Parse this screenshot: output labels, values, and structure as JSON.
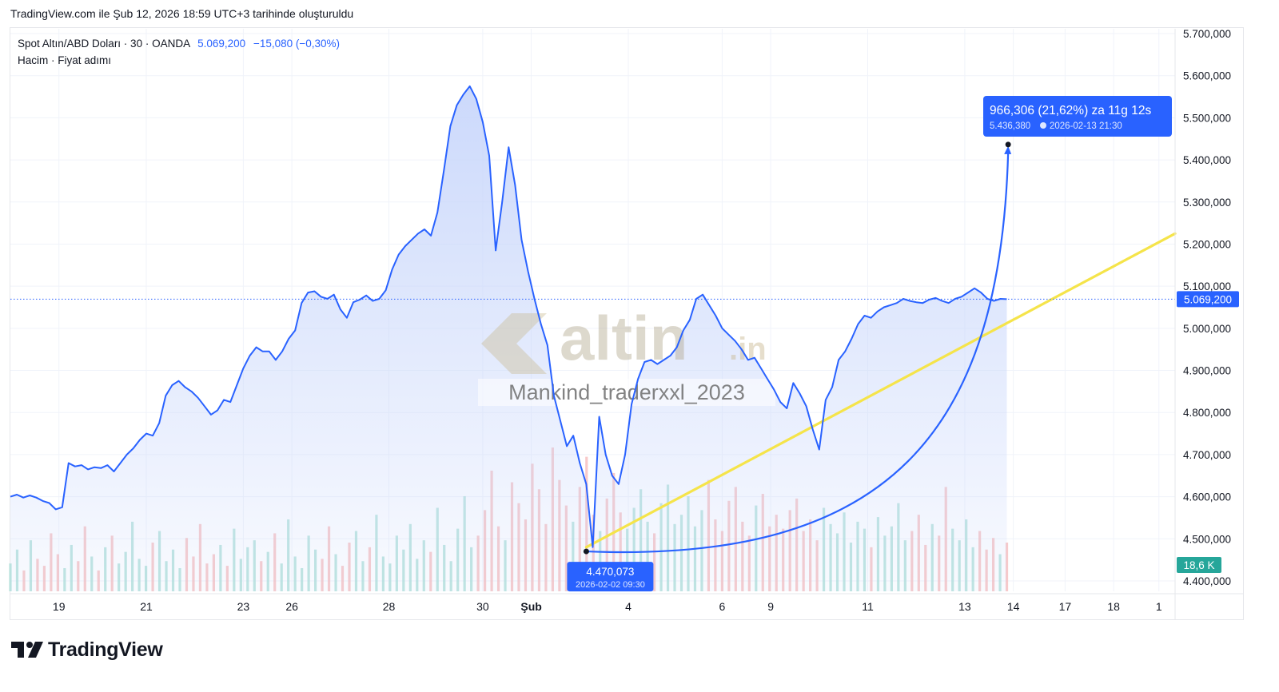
{
  "header": {
    "created_text": "TradingView.com ile Şub 12, 2026 18:59 UTC+3 tarihinde oluşturuldu"
  },
  "legend": {
    "symbol": "Spot Altın/ABD Doları · 30 · OANDA",
    "last_value": "5.069,200",
    "change": "−15,080 (−0,30%)",
    "indicators": "Hacim · Fiyat adımı"
  },
  "watermark": {
    "logo_text": "altin",
    "logo_suffix": ".in",
    "user_text": "Mankind_traderxxl_2023"
  },
  "footer": {
    "brand": "TradingView"
  },
  "colors": {
    "price_line": "#2962ff",
    "area_fill": "#c9d7fb",
    "trend_line": "#f5e44a",
    "volume_up": "#a6dcd3",
    "volume_down": "#f5b7b7",
    "price_tag": "#2962ff",
    "volume_tag": "#26a69a"
  },
  "chart_data": {
    "type": "line",
    "title": "Spot Altın/ABD Doları · 30 · OANDA",
    "ylim": [
      4400000,
      5700000
    ],
    "y_ticks": [
      "4.400,000",
      "4.500,000",
      "4.600,000",
      "4.700,000",
      "4.800,000",
      "4.900,000",
      "5.000,000",
      "5.100,000",
      "5.200,000",
      "5.300,000",
      "5.400,000",
      "5.500,000",
      "5.600,000",
      "5.700,000"
    ],
    "y_tick_values": [
      4400000,
      4500000,
      4600000,
      4700000,
      4800000,
      4900000,
      5000000,
      5100000,
      5200000,
      5300000,
      5400000,
      5500000,
      5600000,
      5700000
    ],
    "x_ticks": [
      {
        "label": "19",
        "index": 7.5
      },
      {
        "label": "21",
        "index": 21
      },
      {
        "label": "23",
        "index": 36
      },
      {
        "label": "26",
        "index": 43.5
      },
      {
        "label": "28",
        "index": 58.5
      },
      {
        "label": "30",
        "index": 73
      },
      {
        "label": "Şub",
        "index": 80.5
      },
      {
        "label": "4",
        "index": 95.5
      },
      {
        "label": "6",
        "index": 110
      },
      {
        "label": "9",
        "index": 117.5
      },
      {
        "label": "11",
        "index": 132.5
      },
      {
        "label": "13",
        "index": 147.5
      },
      {
        "label": "14",
        "index": 155
      },
      {
        "label": "17",
        "index": 163
      },
      {
        "label": "18",
        "index": 170.5
      },
      {
        "label": "1",
        "index": 177.5
      }
    ],
    "x_index_max": 180,
    "series": [
      {
        "name": "Spot Altın/ABD Doları",
        "values": [
          4600000,
          4605000,
          4598000,
          4603000,
          4598000,
          4590000,
          4585000,
          4570000,
          4575000,
          4680000,
          4672000,
          4675000,
          4665000,
          4670000,
          4668000,
          4675000,
          4660000,
          4680000,
          4700000,
          4715000,
          4735000,
          4750000,
          4745000,
          4775000,
          4840000,
          4865000,
          4875000,
          4860000,
          4850000,
          4835000,
          4815000,
          4795000,
          4805000,
          4830000,
          4825000,
          4865000,
          4905000,
          4935000,
          4955000,
          4945000,
          4945000,
          4925000,
          4945000,
          4975000,
          4995000,
          5060000,
          5085000,
          5088000,
          5075000,
          5070000,
          5080000,
          5045000,
          5025000,
          5062000,
          5068000,
          5078000,
          5065000,
          5070000,
          5090000,
          5140000,
          5175000,
          5195000,
          5210000,
          5225000,
          5235000,
          5220000,
          5275000,
          5375000,
          5480000,
          5530000,
          5555000,
          5575000,
          5545000,
          5490000,
          5410000,
          5185000,
          5300000,
          5430000,
          5340000,
          5210000,
          5135000,
          5070000,
          5010000,
          4960000,
          4840000,
          4780000,
          4720000,
          4745000,
          4680000,
          4630000,
          4480000,
          4790000,
          4700000,
          4650000,
          4630000,
          4700000,
          4820000,
          4880000,
          4920000,
          4925000,
          4915000,
          4925000,
          4935000,
          4955000,
          4995000,
          5020000,
          5070000,
          5080000,
          5055000,
          5030000,
          5000000,
          4985000,
          4970000,
          4950000,
          4925000,
          4930000,
          4905000,
          4880000,
          4855000,
          4825000,
          4810000,
          4870000,
          4845000,
          4815000,
          4760000,
          4712000,
          4830000,
          4860000,
          4925000,
          4945000,
          4975000,
          5010000,
          5030000,
          5025000,
          5040000,
          5050000,
          5055000,
          5060000,
          5070000,
          5065000,
          5062000,
          5060000,
          5068000,
          5072000,
          5065000,
          5060000,
          5070000,
          5075000,
          5085000,
          5095000,
          5085000,
          5070000,
          5065000,
          5070000,
          5069200
        ]
      }
    ],
    "volume_scale_label": "18,6 K",
    "volume_bars": [
      12,
      18,
      9,
      22,
      14,
      11,
      25,
      16,
      10,
      20,
      13,
      28,
      15,
      9,
      19,
      24,
      12,
      17,
      30,
      14,
      11,
      21,
      26,
      13,
      18,
      10,
      23,
      15,
      29,
      12,
      16,
      20,
      11,
      27,
      14,
      19,
      22,
      13,
      17,
      25,
      12,
      31,
      15,
      10,
      24,
      18,
      14,
      28,
      16,
      11,
      21,
      26,
      13,
      19,
      33,
      15,
      12,
      24,
      18,
      29,
      14,
      22,
      17,
      36,
      20,
      13,
      27,
      41,
      19,
      24,
      35,
      52,
      28,
      22,
      47,
      38,
      31,
      55,
      44,
      29,
      62,
      48,
      37,
      30,
      45,
      58,
      33,
      26,
      40,
      51,
      34,
      27,
      36,
      44,
      30,
      25,
      38,
      46,
      29,
      33,
      41,
      28,
      35,
      48,
      31,
      26,
      39,
      45,
      30,
      24,
      37,
      42,
      28,
      33,
      27,
      35,
      40,
      26,
      31,
      22,
      36,
      29,
      25,
      34,
      21,
      30,
      27,
      19,
      32,
      24,
      28,
      38,
      22,
      26,
      33,
      20,
      29,
      24,
      45,
      27,
      22,
      31,
      19,
      26,
      18,
      23,
      16,
      21
    ],
    "last_price_label": "5.069,200",
    "last_price": 5069200,
    "low_label_price": "4.470,073",
    "low_label_time": "2026-02-02 09:30",
    "low_point": {
      "index": 89,
      "value": 4470073
    },
    "projection_label_main": "966,306 (21,62%) za 11g 12s",
    "projection_label_price": "5.436,380",
    "projection_label_time": "2026-02-13  21:30",
    "projection_point": {
      "index": 154.2,
      "value": 5436380
    },
    "trend_line": {
      "start": {
        "index": 89,
        "value": 4480000
      },
      "end": {
        "index": 180,
        "value": 5225000
      }
    },
    "grid": true
  }
}
